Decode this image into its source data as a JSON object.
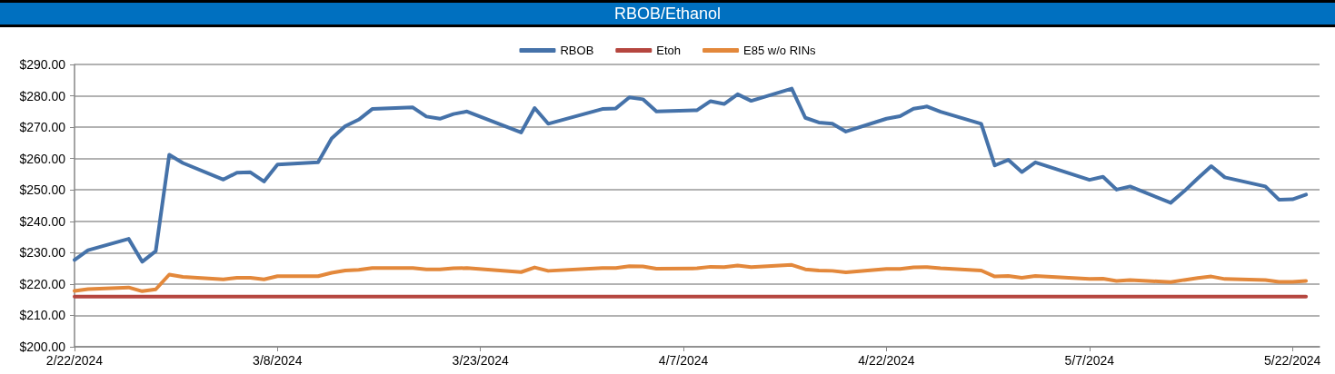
{
  "chart_data": {
    "type": "line",
    "title": "RBOB/Ethanol",
    "x": [
      "2024-02-22",
      "2024-02-23",
      "2024-02-26",
      "2024-02-27",
      "2024-02-28",
      "2024-02-29",
      "2024-03-01",
      "2024-03-04",
      "2024-03-05",
      "2024-03-06",
      "2024-03-07",
      "2024-03-08",
      "2024-03-11",
      "2024-03-12",
      "2024-03-13",
      "2024-03-14",
      "2024-03-15",
      "2024-03-18",
      "2024-03-19",
      "2024-03-20",
      "2024-03-21",
      "2024-03-22",
      "2024-03-26",
      "2024-03-27",
      "2024-03-28",
      "2024-04-01",
      "2024-04-02",
      "2024-04-03",
      "2024-04-04",
      "2024-04-05",
      "2024-04-08",
      "2024-04-09",
      "2024-04-10",
      "2024-04-11",
      "2024-04-12",
      "2024-04-15",
      "2024-04-16",
      "2024-04-17",
      "2024-04-18",
      "2024-04-19",
      "2024-04-22",
      "2024-04-23",
      "2024-04-24",
      "2024-04-25",
      "2024-04-26",
      "2024-04-29",
      "2024-04-30",
      "2024-05-01",
      "2024-05-02",
      "2024-05-03",
      "2024-05-07",
      "2024-05-08",
      "2024-05-09",
      "2024-05-10",
      "2024-05-13",
      "2024-05-14",
      "2024-05-15",
      "2024-05-16",
      "2024-05-17",
      "2024-05-20",
      "2024-05-21",
      "2024-05-22",
      "2024-05-23"
    ],
    "series": [
      {
        "name": "RBOB",
        "color": "#4572a9",
        "values": [
          227.7,
          230.8,
          234.4,
          227.1,
          230.5,
          261.2,
          258.6,
          253.3,
          255.5,
          255.6,
          252.7,
          258.1,
          258.8,
          266.4,
          270.3,
          272.4,
          275.8,
          276.3,
          273.4,
          272.7,
          274.2,
          275.0,
          268.3,
          276.1,
          271.1,
          275.8,
          276.0,
          279.5,
          278.9,
          275.0,
          275.4,
          278.3,
          277.4,
          280.5,
          278.4,
          282.3,
          273.0,
          271.5,
          271.1,
          268.6,
          272.7,
          273.5,
          275.9,
          276.6,
          274.9,
          271.1,
          257.8,
          259.6,
          255.7,
          258.8,
          253.2,
          254.2,
          250.1,
          251.1,
          245.9,
          249.6,
          253.7,
          257.6,
          254.0,
          251.1,
          246.9,
          247.0,
          248.5
        ]
      },
      {
        "name": "Etoh",
        "color": "#b5463f",
        "values": [
          216,
          216,
          216,
          216,
          216,
          216,
          216,
          216,
          216,
          216,
          216,
          216,
          216,
          216,
          216,
          216,
          216,
          216,
          216,
          216,
          216,
          216,
          216,
          216,
          216,
          216,
          216,
          216,
          216,
          216,
          216,
          216,
          216,
          216,
          216,
          216,
          216,
          216,
          216,
          216,
          216,
          216,
          216,
          216,
          216,
          216,
          216,
          216,
          216,
          216,
          216,
          216,
          216,
          216,
          216,
          216,
          216,
          216,
          216,
          216,
          216,
          216,
          216
        ]
      },
      {
        "name": "E85 w/o RINs",
        "color": "#e3883b",
        "values": [
          217.8,
          218.4,
          218.9,
          217.7,
          218.3,
          223.0,
          222.3,
          221.5,
          222.0,
          222.0,
          221.5,
          222.5,
          222.5,
          223.6,
          224.3,
          224.5,
          225.1,
          225.1,
          224.7,
          224.7,
          225.0,
          225.1,
          223.8,
          225.3,
          224.2,
          225.1,
          225.1,
          225.7,
          225.6,
          224.9,
          225.0,
          225.5,
          225.4,
          225.9,
          225.4,
          226.1,
          224.7,
          224.3,
          224.2,
          223.7,
          224.8,
          224.8,
          225.3,
          225.4,
          225.0,
          224.3,
          222.4,
          222.6,
          222.0,
          222.6,
          221.6,
          221.7,
          221.0,
          221.3,
          220.6,
          221.3,
          221.9,
          222.4,
          221.6,
          221.3,
          220.7,
          220.7,
          221.0
        ]
      }
    ],
    "xlim": [
      "2024-02-22",
      "2024-05-24"
    ],
    "xticks": [
      {
        "value": "2024-02-22",
        "label": "2/22/2024"
      },
      {
        "value": "2024-03-08",
        "label": "3/8/2024"
      },
      {
        "value": "2024-03-23",
        "label": "3/23/2024"
      },
      {
        "value": "2024-04-07",
        "label": "4/7/2024"
      },
      {
        "value": "2024-04-22",
        "label": "4/22/2024"
      },
      {
        "value": "2024-05-07",
        "label": "5/7/2024"
      },
      {
        "value": "2024-05-22",
        "label": "5/22/2024"
      }
    ],
    "ylim": [
      200,
      290
    ],
    "yticks": [
      {
        "value": 200,
        "label": "$200.00"
      },
      {
        "value": 210,
        "label": "$210.00"
      },
      {
        "value": 220,
        "label": "$220.00"
      },
      {
        "value": 230,
        "label": "$230.00"
      },
      {
        "value": 240,
        "label": "$240.00"
      },
      {
        "value": 250,
        "label": "$250.00"
      },
      {
        "value": 260,
        "label": "$260.00"
      },
      {
        "value": 270,
        "label": "$270.00"
      },
      {
        "value": 280,
        "label": "$280.00"
      },
      {
        "value": 290,
        "label": "$290.00"
      }
    ],
    "grid": "y",
    "legend": "top",
    "marker": "none",
    "line_style": "solid"
  }
}
